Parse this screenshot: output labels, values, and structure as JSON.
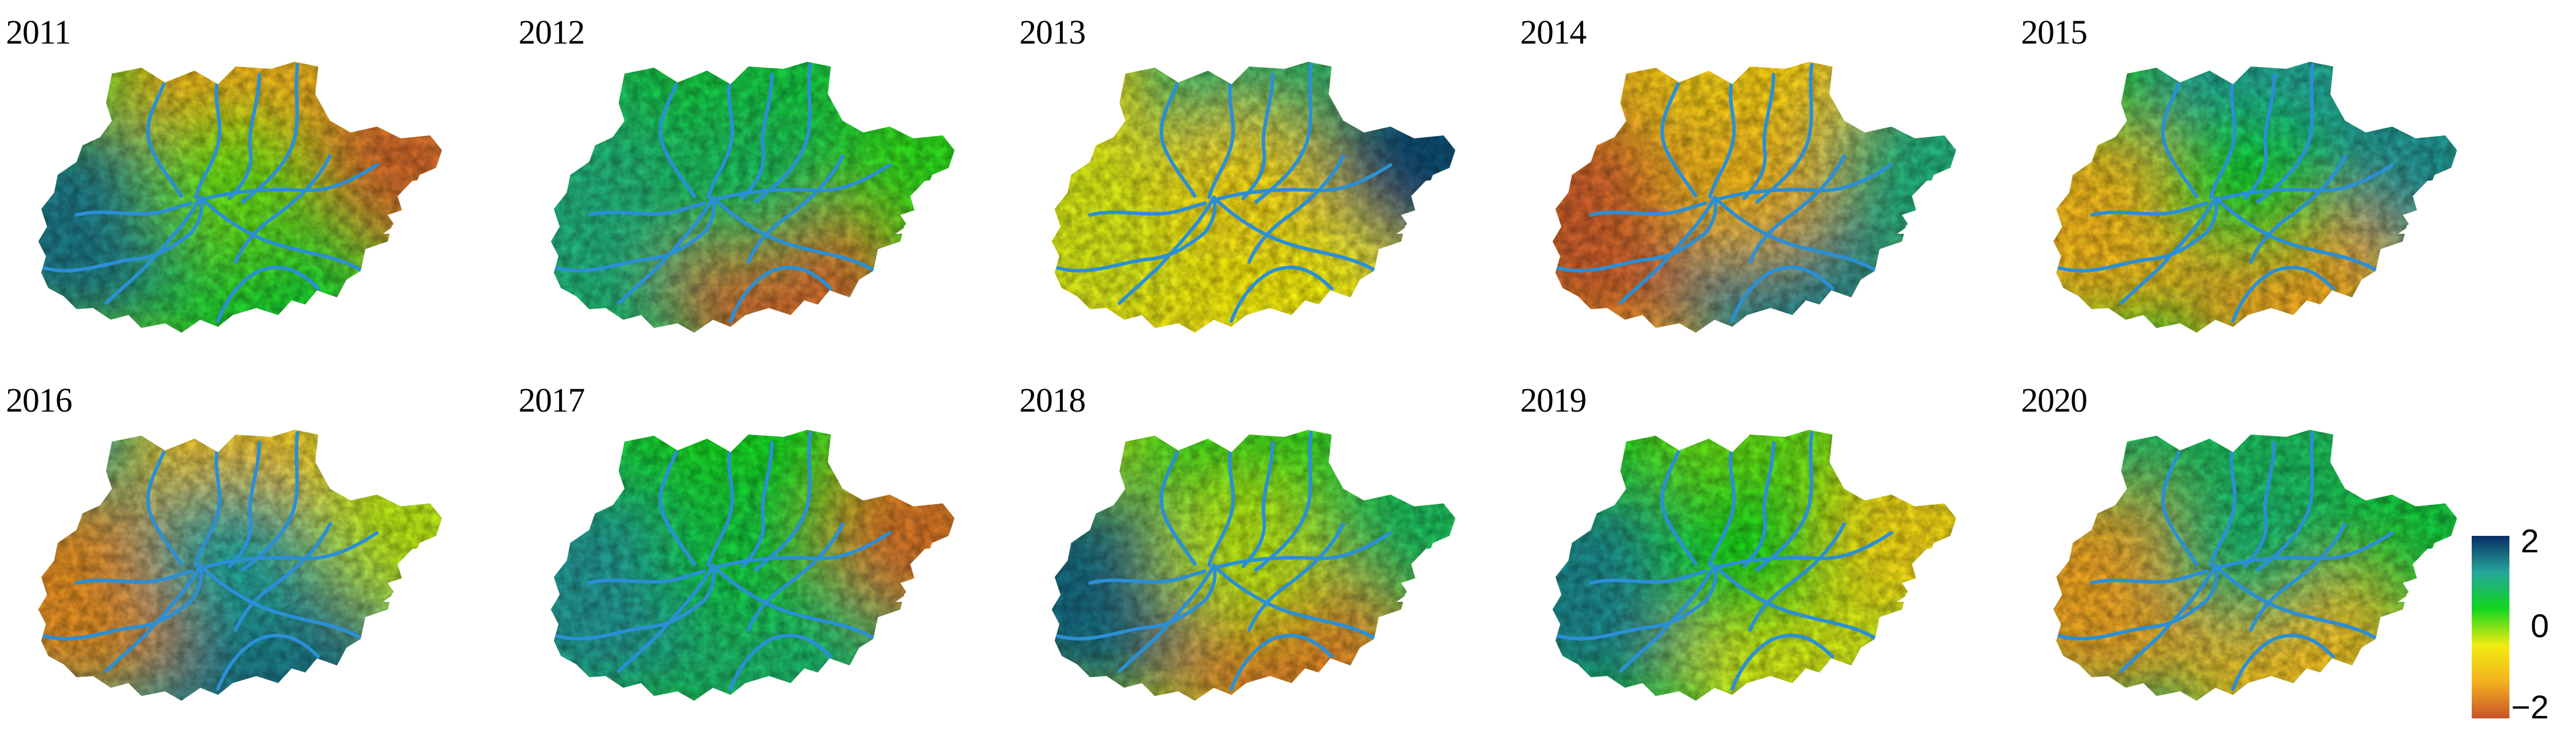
{
  "figure": {
    "panels": [
      {
        "year": "2011",
        "west": 1.5,
        "center": 0.1,
        "east": -1.8,
        "north": -1.2,
        "south": 0.5
      },
      {
        "year": "2012",
        "west": 1.0,
        "center": 0.8,
        "east": 0.3,
        "north": 0.6,
        "south": -1.8
      },
      {
        "year": "2013",
        "west": -0.3,
        "center": -0.7,
        "east": 1.8,
        "north": 0.9,
        "south": -0.4
      },
      {
        "year": "2014",
        "west": -1.9,
        "center": -1.1,
        "east": 1.0,
        "north": -0.8,
        "south": 1.4
      },
      {
        "year": "2015",
        "west": -1.1,
        "center": 0.5,
        "east": 1.3,
        "north": 1.2,
        "south": -1.3
      },
      {
        "year": "2016",
        "west": -1.5,
        "center": 1.2,
        "east": -0.2,
        "north": -0.9,
        "south": 1.5
      },
      {
        "year": "2017",
        "west": 1.3,
        "center": 0.6,
        "east": -1.7,
        "north": 0.4,
        "south": 0.9
      },
      {
        "year": "2018",
        "west": 1.6,
        "center": -0.2,
        "east": 0.8,
        "north": 0.3,
        "south": -1.6
      },
      {
        "year": "2019",
        "west": 1.4,
        "center": 0.4,
        "east": -0.7,
        "north": 0.1,
        "south": -0.3
      },
      {
        "year": "2020",
        "west": -1.3,
        "center": 0.9,
        "east": 0.6,
        "north": 0.8,
        "south": -1.0
      }
    ],
    "colorbar": {
      "min": -2,
      "max": 2,
      "tick_labels": [
        "2",
        "0",
        "−2"
      ],
      "colors": [
        "#c8532c",
        "#f3b11f",
        "#f2ec11",
        "#12d61e",
        "#24a69a",
        "#0b2e66"
      ]
    },
    "river_color": "#2b8fd6"
  }
}
